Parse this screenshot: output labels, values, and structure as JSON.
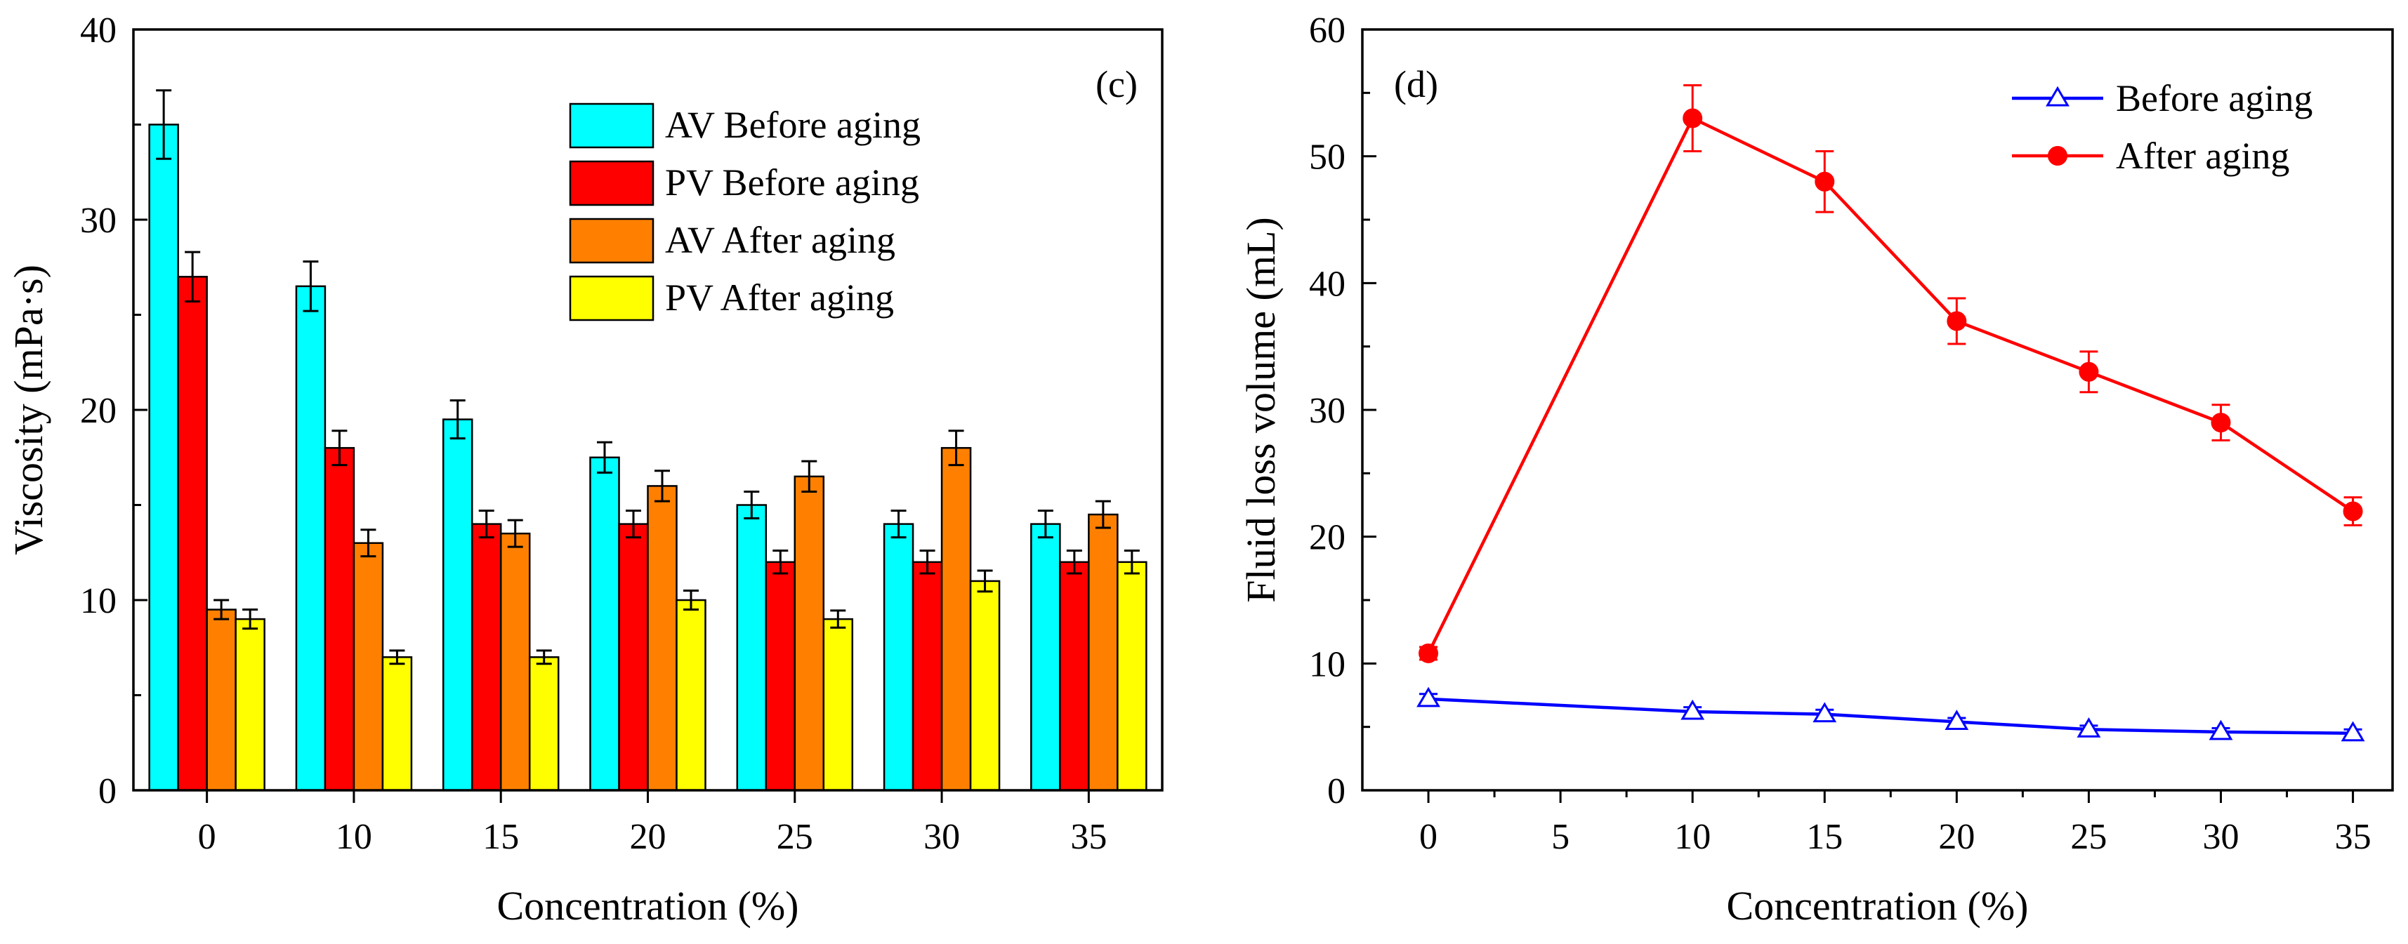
{
  "chart_data": [
    {
      "type": "bar",
      "panel_label": "(c)",
      "xlabel": "Concentration (%)",
      "ylabel": "Viscosity (mPa·s)",
      "ylim": [
        0,
        40
      ],
      "yticks": [
        0,
        10,
        20,
        30,
        40
      ],
      "categories": [
        "0",
        "10",
        "15",
        "20",
        "25",
        "30",
        "35"
      ],
      "legend_position": "top-right",
      "series": [
        {
          "name": "AV Before aging",
          "color": "#00FFFF",
          "values": [
            35,
            26.5,
            19.5,
            17.5,
            15,
            14,
            14
          ],
          "errors": [
            1.8,
            1.3,
            1.0,
            0.8,
            0.7,
            0.7,
            0.7
          ]
        },
        {
          "name": "PV Before aging",
          "color": "#FF0000",
          "values": [
            27,
            18,
            14,
            14,
            12,
            12,
            12
          ],
          "errors": [
            1.3,
            0.9,
            0.7,
            0.7,
            0.6,
            0.6,
            0.6
          ]
        },
        {
          "name": "AV After aging",
          "color": "#FF8000",
          "values": [
            9.5,
            13,
            13.5,
            16,
            16.5,
            18,
            14.5
          ],
          "errors": [
            0.5,
            0.7,
            0.7,
            0.8,
            0.8,
            0.9,
            0.7
          ]
        },
        {
          "name": "PV After aging",
          "color": "#FFFF00",
          "values": [
            9,
            7,
            7,
            10,
            9,
            11,
            12
          ],
          "errors": [
            0.5,
            0.35,
            0.35,
            0.5,
            0.45,
            0.55,
            0.6
          ]
        }
      ]
    },
    {
      "type": "line",
      "panel_label": "(d)",
      "xlabel": "Concentration (%)",
      "ylabel": "Fluid loss volume (mL)",
      "xlim": [
        -2.5,
        36.5
      ],
      "ylim": [
        0,
        60
      ],
      "xticks": [
        0,
        5,
        10,
        15,
        20,
        25,
        30,
        35
      ],
      "yticks": [
        0,
        10,
        20,
        30,
        40,
        50,
        60
      ],
      "legend_position": "top-right",
      "x": [
        0,
        10,
        15,
        20,
        25,
        30,
        35
      ],
      "series": [
        {
          "name": "Before aging",
          "color": "#0000FF",
          "marker": "open-triangle",
          "values": [
            7.2,
            6.2,
            6.0,
            5.4,
            4.8,
            4.6,
            4.5
          ],
          "errors": [
            0.4,
            0.35,
            0.35,
            0.3,
            0.3,
            0.3,
            0.3
          ]
        },
        {
          "name": "After aging",
          "color": "#FF0000",
          "marker": "filled-circle",
          "values": [
            10.8,
            53,
            48,
            37,
            33,
            29,
            22
          ],
          "errors": [
            0.5,
            2.6,
            2.4,
            1.8,
            1.6,
            1.4,
            1.1
          ]
        }
      ]
    }
  ]
}
